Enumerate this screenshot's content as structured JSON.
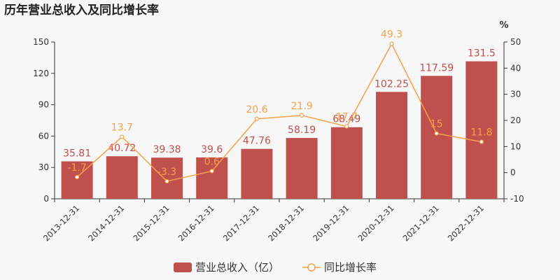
{
  "chart_data": {
    "type": "bar",
    "title": "历年营业总收入及同比增长率",
    "categories": [
      "2013-12-31",
      "2014-12-31",
      "2015-12-31",
      "2016-12-31",
      "2017-12-31",
      "2018-12-31",
      "2019-12-31",
      "2020-12-31",
      "2021-12-31",
      "2022-12-31"
    ],
    "series": [
      {
        "name": "营业总收入（亿）",
        "type": "bar",
        "axis": "left",
        "color": "#c0504d",
        "values": [
          35.81,
          40.72,
          39.38,
          39.6,
          47.76,
          58.19,
          68.49,
          102.25,
          117.59,
          131.5
        ],
        "labels": [
          "35.81",
          "40.72",
          "39.38",
          "39.6",
          "47.76",
          "58.19",
          "68.49",
          "102.25",
          "117.59",
          "131.5"
        ]
      },
      {
        "name": "同比增长率",
        "type": "line",
        "axis": "right",
        "color": "#f4a14a",
        "values": [
          -1.7,
          13.7,
          -3.3,
          0.6,
          20.6,
          21.9,
          17.7,
          49.3,
          15,
          11.8
        ],
        "labels": [
          "-1.7",
          "13.7",
          "-3.3",
          "0.6",
          "20.6",
          "21.9",
          "17.7",
          "49.3",
          "15",
          "11.8"
        ]
      }
    ],
    "y_left": {
      "min": 0,
      "max": 150,
      "ticks": [
        0,
        30,
        60,
        90,
        120,
        150
      ]
    },
    "y_right": {
      "min": -10,
      "max": 50,
      "ticks": [
        -10,
        0,
        10,
        20,
        30,
        40,
        50
      ],
      "unit": "%"
    },
    "legend_position": "bottom-center",
    "grid": false
  }
}
